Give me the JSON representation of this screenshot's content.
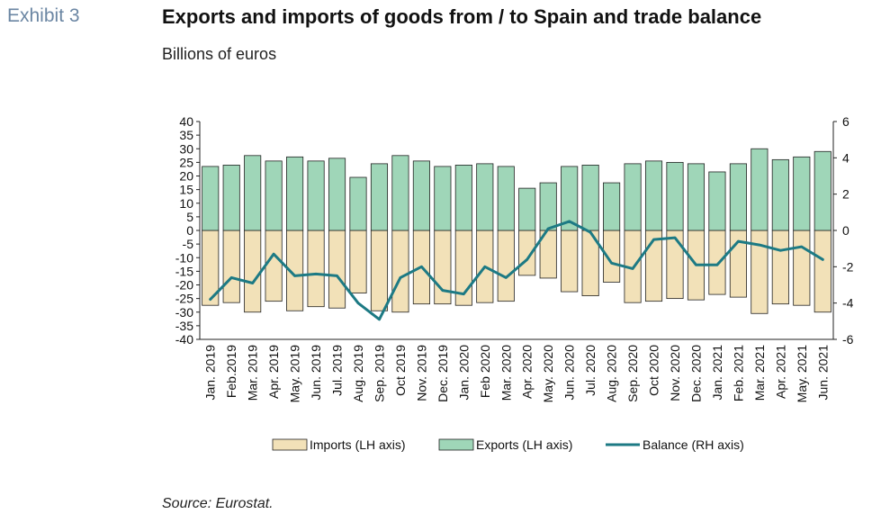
{
  "header": {
    "exhibit": "Exhibit 3",
    "title": "Exports and imports of goods from / to Spain and trade balance",
    "subtitle": "Billions of euros"
  },
  "footer": {
    "source": "Source: Eurostat."
  },
  "colors": {
    "imports": "#f2e1b8",
    "exports": "#9fd6b8",
    "balance": "#1d7a84",
    "bar_stroke": "#222222"
  },
  "chart_data": {
    "type": "bar",
    "categories": [
      "Jan. 2019",
      "Feb.2019",
      "Mar. 2019",
      "Apr. 2019",
      "May. 2019",
      "Jun. 2019",
      "Jul. 2019",
      "Aug. 2019",
      "Sep. 2019",
      "Oct 2019",
      "Nov. 2019",
      "Dec. 2019",
      "Jan. 2020",
      "Feb 2020",
      "Mar. 2020",
      "Apr. 2020",
      "May. 2020",
      "Jun. 2020",
      "Jul. 2020",
      "Aug. 2020",
      "Sep. 2020",
      "Oct 2020",
      "Nov. 2020",
      "Dec. 2020",
      "Jan. 2021",
      "Feb. 2021",
      "Mar. 2021",
      "Apr. 2021",
      "May. 2021",
      "Jun. 2021"
    ],
    "series": [
      {
        "name": "Imports (LH axis)",
        "kind": "bar",
        "axis": "left",
        "values": [
          -27.5,
          -26.5,
          -30,
          -26,
          -29.5,
          -28,
          -28.5,
          -23,
          -29.5,
          -30,
          -27,
          -27,
          -27.5,
          -26.5,
          -26,
          -16.5,
          -17.5,
          -22.5,
          -24,
          -19,
          -26.5,
          -26,
          -25,
          -25.5,
          -23.5,
          -24.5,
          -30.5,
          -27,
          -27.5,
          -30
        ]
      },
      {
        "name": "Exports (LH axis)",
        "kind": "bar",
        "axis": "left",
        "values": [
          23.5,
          24,
          27.5,
          25.5,
          27,
          25.5,
          26.5,
          19.5,
          24.5,
          27.5,
          25.5,
          23.5,
          24,
          24.5,
          23.5,
          15.5,
          17.5,
          23.5,
          24,
          17.5,
          24.5,
          25.5,
          25,
          24.5,
          21.5,
          24.5,
          30,
          26,
          27,
          29
        ]
      },
      {
        "name": "Balance (RH axis)",
        "kind": "line",
        "axis": "right",
        "values": [
          -3.8,
          -2.6,
          -2.9,
          -1.3,
          -2.5,
          -2.4,
          -2.5,
          -4.0,
          -4.9,
          -2.6,
          -2.0,
          -3.3,
          -3.5,
          -2.0,
          -2.6,
          -1.6,
          0.1,
          0.5,
          -0.1,
          -1.8,
          -2.1,
          -0.5,
          -0.4,
          -1.9,
          -1.9,
          -0.6,
          -0.8,
          -1.1,
          -0.9,
          -1.6
        ]
      }
    ],
    "left_axis": {
      "min": -40,
      "max": 40,
      "step": 5
    },
    "right_axis": {
      "min": -6,
      "max": 6,
      "step": 2
    },
    "legend": [
      "Imports (LH axis)",
      "Exports (LH axis)",
      "Balance (RH axis)"
    ],
    "legend_placement": "bottom",
    "grid": false
  }
}
